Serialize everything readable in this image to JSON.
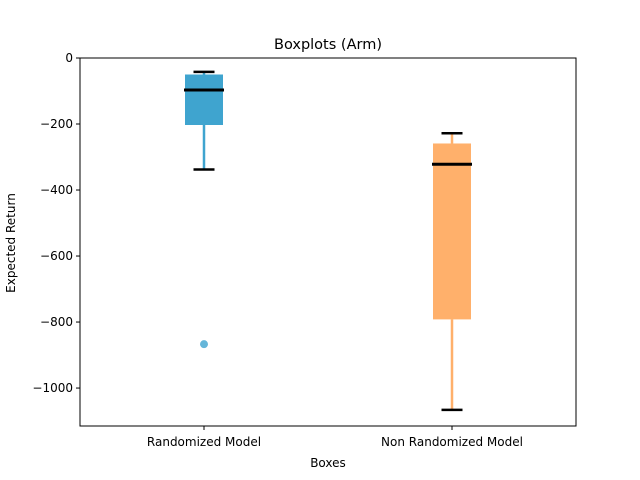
{
  "chart_data": {
    "type": "boxplot",
    "title": "Boxplots (Arm)",
    "xlabel": "Boxes",
    "ylabel": "Expected Return",
    "ylim": [
      -1115,
      0
    ],
    "yticks": [
      0,
      -200,
      -400,
      -600,
      -800,
      -1000
    ],
    "grid": false,
    "categories": [
      "Randomized Model",
      "Non Randomized Model"
    ],
    "boxes": [
      {
        "label": "Randomized Model",
        "whisker_high": -42,
        "q3": -50,
        "median": -97,
        "q1": -203,
        "whisker_low": -338,
        "outliers": [
          -867
        ],
        "color": "#3fa4cf"
      },
      {
        "label": "Non Randomized Model",
        "whisker_high": -228,
        "q3": -259,
        "median": -322,
        "q1": -792,
        "whisker_low": -1066,
        "outliers": [],
        "color": "#ffb06b"
      }
    ]
  }
}
